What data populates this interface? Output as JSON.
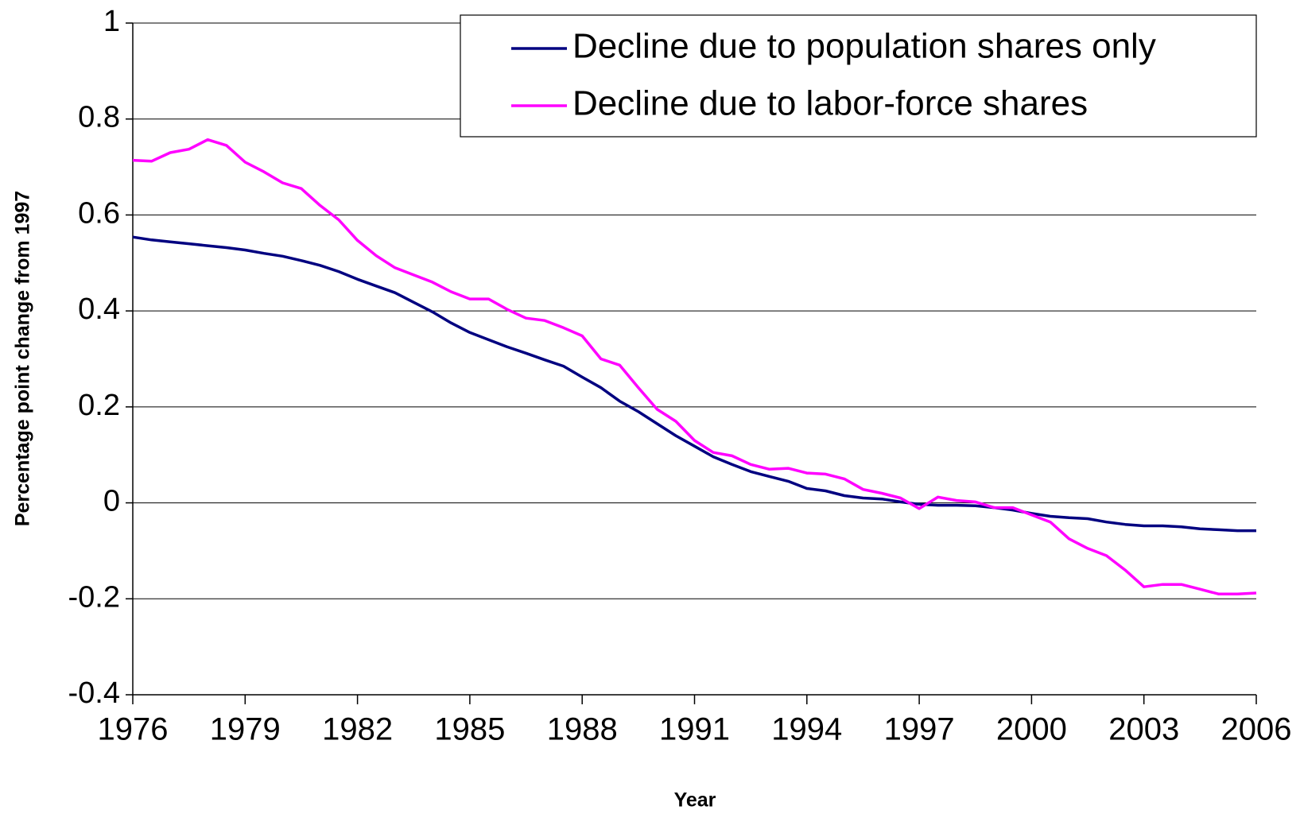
{
  "chart_data": {
    "type": "line",
    "y_label": "Percentage point change from 1997",
    "x_label": "Year",
    "x": [
      1976,
      1976.5,
      1977,
      1977.5,
      1978,
      1978.5,
      1979,
      1979.5,
      1980,
      1980.5,
      1981,
      1981.5,
      1982,
      1982.5,
      1983,
      1983.5,
      1984,
      1984.5,
      1985,
      1985.5,
      1986,
      1986.5,
      1987,
      1987.5,
      1988,
      1988.5,
      1989,
      1989.5,
      1990,
      1990.5,
      1991,
      1991.5,
      1992,
      1992.5,
      1993,
      1993.5,
      1994,
      1994.5,
      1995,
      1995.5,
      1996,
      1996.5,
      1997,
      1997.5,
      1998,
      1998.5,
      1999,
      1999.5,
      2000,
      2000.5,
      2001,
      2001.5,
      2002,
      2002.5,
      2003,
      2003.5,
      2004,
      2004.5,
      2005,
      2005.5,
      2006
    ],
    "series": [
      {
        "name": "Decline due to population shares only",
        "color": "#000080",
        "values": [
          0.554,
          0.548,
          0.544,
          0.54,
          0.536,
          0.532,
          0.527,
          0.52,
          0.514,
          0.505,
          0.495,
          0.482,
          0.466,
          0.452,
          0.438,
          0.418,
          0.398,
          0.375,
          0.355,
          0.34,
          0.325,
          0.312,
          0.298,
          0.285,
          0.262,
          0.24,
          0.212,
          0.19,
          0.165,
          0.14,
          0.118,
          0.096,
          0.08,
          0.065,
          0.055,
          0.045,
          0.03,
          0.025,
          0.015,
          0.01,
          0.008,
          0.002,
          -0.003,
          -0.005,
          -0.005,
          -0.006,
          -0.01,
          -0.015,
          -0.022,
          -0.028,
          -0.031,
          -0.033,
          -0.04,
          -0.045,
          -0.048,
          -0.048,
          -0.05,
          -0.054,
          -0.056,
          -0.058,
          -0.058
        ]
      },
      {
        "name": "Decline due to labor-force shares",
        "color": "#ff00ff",
        "values": [
          0.714,
          0.712,
          0.73,
          0.737,
          0.757,
          0.745,
          0.71,
          0.69,
          0.667,
          0.655,
          0.62,
          0.59,
          0.547,
          0.515,
          0.49,
          0.475,
          0.46,
          0.44,
          0.425,
          0.425,
          0.403,
          0.385,
          0.38,
          0.365,
          0.348,
          0.3,
          0.287,
          0.24,
          0.195,
          0.17,
          0.13,
          0.105,
          0.098,
          0.08,
          0.07,
          0.072,
          0.062,
          0.06,
          0.05,
          0.028,
          0.02,
          0.01,
          -0.012,
          0.012,
          0.005,
          0.002,
          -0.01,
          -0.01,
          -0.025,
          -0.04,
          -0.075,
          -0.095,
          -0.11,
          -0.14,
          -0.175,
          -0.17,
          -0.17,
          -0.18,
          -0.19,
          -0.19,
          -0.188
        ]
      }
    ],
    "xlim": [
      1976,
      2006
    ],
    "xticks": [
      1976,
      1979,
      1982,
      1985,
      1988,
      1991,
      1994,
      1997,
      2000,
      2003,
      2006
    ],
    "ylim": [
      -0.4,
      1
    ],
    "yticks": [
      -0.4,
      -0.2,
      0,
      0.2,
      0.4,
      0.6,
      0.8,
      1
    ],
    "grid": true,
    "legend": "top-right"
  }
}
